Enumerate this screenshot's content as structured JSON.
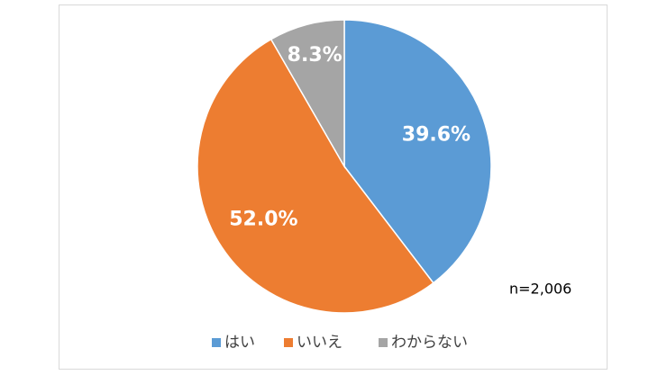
{
  "chart_data": {
    "type": "pie",
    "categories": [
      "はい",
      "いいえ",
      "わからない"
    ],
    "values": [
      39.6,
      52.0,
      8.3
    ],
    "value_labels": [
      "39.6%",
      "52.0%",
      "8.3%"
    ],
    "colors": [
      "#5b9bd5",
      "#ed7d31",
      "#a5a5a5"
    ],
    "annotation": "n=2,006",
    "legend": "bottom"
  }
}
